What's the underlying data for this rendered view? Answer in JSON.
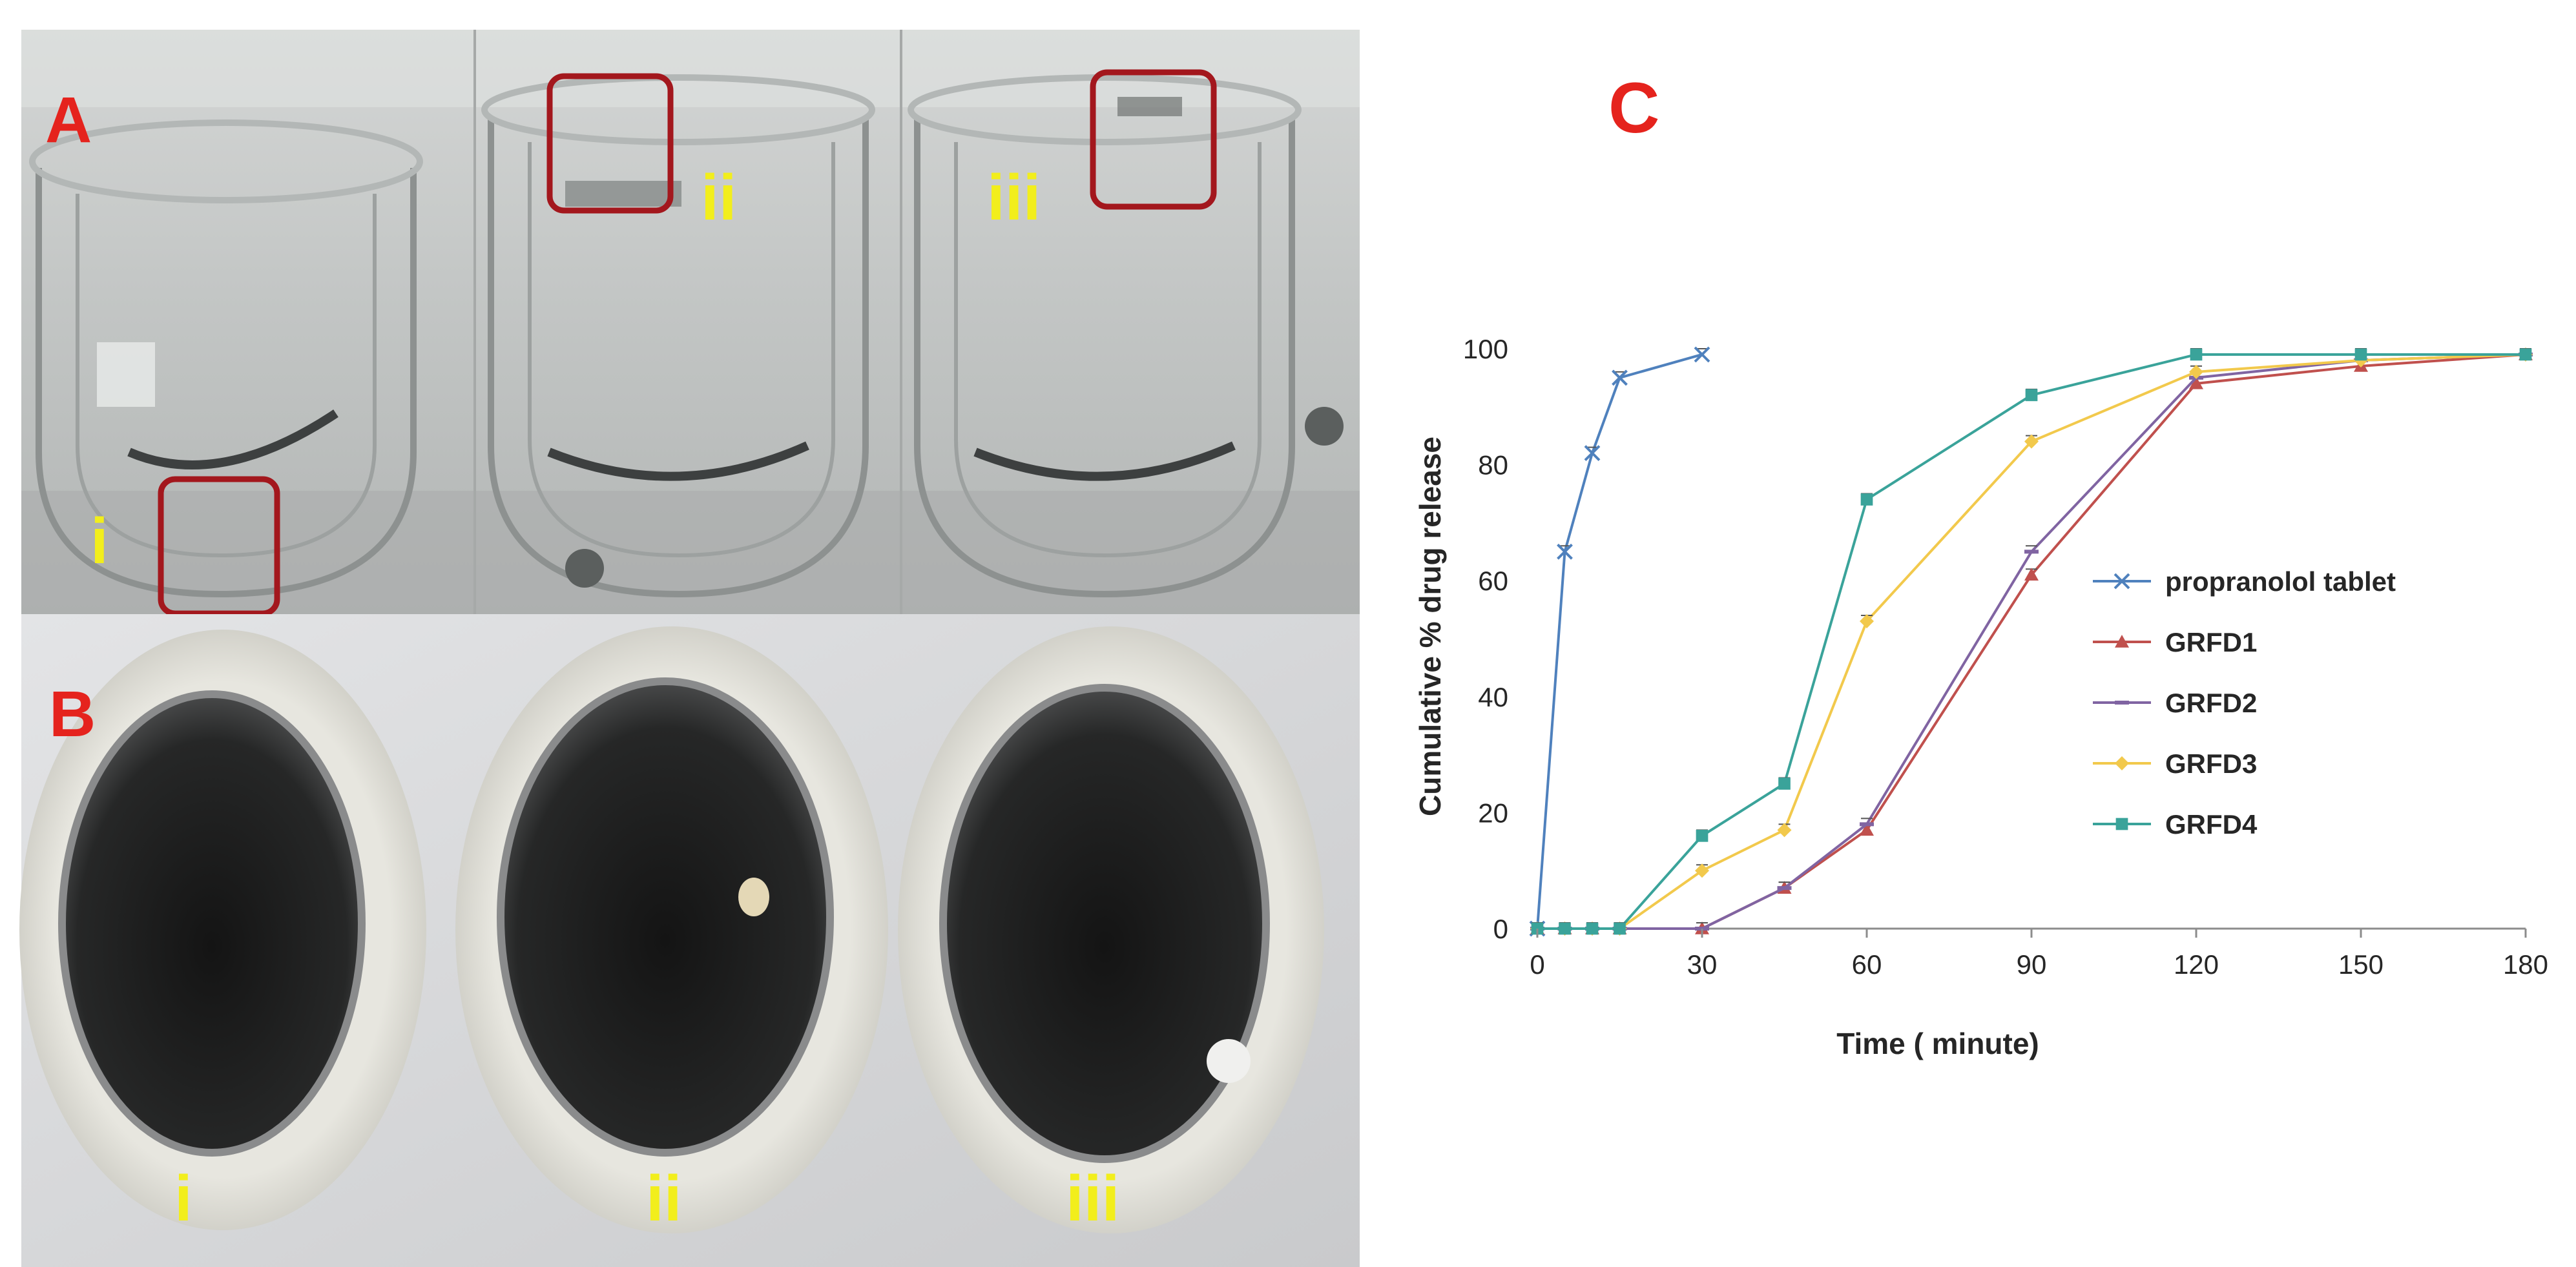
{
  "panels": {
    "a_label": "A",
    "b_label": "B",
    "c_label": "C",
    "a_vessels": [
      "i",
      "ii",
      "iii"
    ],
    "b_vessels": [
      "i",
      "ii",
      "iii"
    ]
  },
  "colors": {
    "panel_letter": "#e5231d",
    "vessel_label": "#f2ee1c",
    "highlight_box": "#a3171d",
    "propranolol": "#4f81bd",
    "GRFD1": "#c0504d",
    "GRFD2": "#8064a2",
    "GRFD3": "#f2c94c",
    "GRFD4": "#3aa39a"
  },
  "chart_data": {
    "type": "line",
    "xlabel": "Time ( minute)",
    "ylabel": "Cumulative % drug release",
    "xlim": [
      0,
      180
    ],
    "ylim": [
      0,
      100
    ],
    "xticks": [
      0,
      30,
      60,
      90,
      120,
      150,
      180
    ],
    "yticks": [
      0,
      20,
      40,
      60,
      80,
      100
    ],
    "grid": false,
    "legend": "right",
    "series": [
      {
        "name": "propranolol tablet",
        "marker": "x",
        "color": "#4f81bd",
        "x": [
          0,
          5,
          10,
          15,
          30
        ],
        "y": [
          0,
          65,
          82,
          95,
          99
        ]
      },
      {
        "name": "GRFD1",
        "marker": "triangle",
        "color": "#c0504d",
        "x": [
          0,
          5,
          10,
          15,
          30,
          45,
          60,
          90,
          120,
          150,
          180
        ],
        "y": [
          0,
          0,
          0,
          0,
          0,
          7,
          17,
          61,
          94,
          97,
          99
        ]
      },
      {
        "name": "GRFD2",
        "marker": "dash",
        "color": "#8064a2",
        "x": [
          0,
          5,
          10,
          15,
          30,
          45,
          60,
          90,
          120,
          150,
          180
        ],
        "y": [
          0,
          0,
          0,
          0,
          0,
          7,
          18,
          65,
          95,
          98,
          99
        ]
      },
      {
        "name": "GRFD3",
        "marker": "diamond",
        "color": "#f2c94c",
        "x": [
          0,
          5,
          10,
          15,
          30,
          45,
          60,
          90,
          120,
          150,
          180
        ],
        "y": [
          0,
          0,
          0,
          0,
          10,
          17,
          53,
          84,
          96,
          98,
          99
        ]
      },
      {
        "name": "GRFD4",
        "marker": "square",
        "color": "#3aa39a",
        "x": [
          0,
          5,
          10,
          15,
          30,
          45,
          60,
          90,
          120,
          150,
          180
        ],
        "y": [
          0,
          0,
          0,
          0,
          16,
          25,
          74,
          92,
          99,
          99,
          99
        ]
      }
    ]
  }
}
